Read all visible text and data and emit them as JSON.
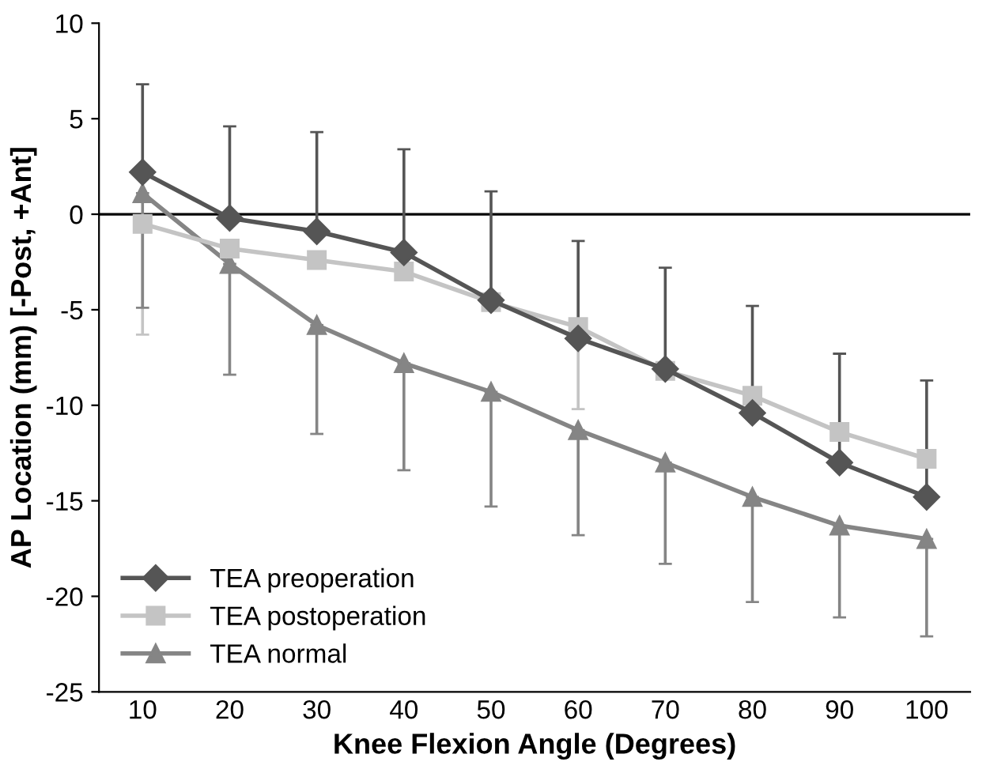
{
  "chart_data": {
    "type": "line",
    "xlabel": "Knee Flexion Angle (Degrees)",
    "ylabel": "AP Location (mm) [-Post, +Ant]",
    "categories": [
      "10",
      "20",
      "30",
      "40",
      "50",
      "60",
      "70",
      "80",
      "90",
      "100"
    ],
    "ylim": [
      -25,
      10
    ],
    "yticks": [
      -25,
      -20,
      -15,
      -10,
      -5,
      0,
      5,
      10
    ],
    "grid": false,
    "legend": "bottom left",
    "ref_lines": [
      {
        "axis": "y",
        "value": 0,
        "color": "#000000"
      }
    ],
    "series": [
      {
        "name": "TEA preoperation",
        "color": "#555555",
        "marker": "diamond",
        "values": [
          2.2,
          -0.2,
          -0.9,
          -2,
          -4.5,
          -6.5,
          -8.1,
          -10.4,
          -13,
          -14.8
        ],
        "errors": [
          [
            2.2,
            6.8
          ],
          [
            -0.2,
            4.6
          ],
          [
            -0.9,
            4.3
          ],
          [
            -2,
            3.4
          ],
          [
            -4.5,
            1.2
          ],
          [
            -6.5,
            -1.4
          ],
          [
            -8.1,
            -2.8
          ],
          [
            -10.4,
            -4.8
          ],
          [
            -13,
            -7.3
          ],
          [
            -14.8,
            -8.7
          ]
        ]
      },
      {
        "name": "TEA postoperation",
        "color": "#c4c4c4",
        "marker": "square",
        "values": [
          -0.5,
          -1.8,
          -2.4,
          -3.0,
          -4.6,
          -5.9,
          -8.2,
          -9.5,
          -11.4,
          -12.8
        ],
        "errors": [
          [
            -6.3,
            -0.5
          ],
          null,
          null,
          null,
          null,
          [
            -10.2,
            -5.9
          ],
          null,
          null,
          null,
          null
        ]
      },
      {
        "name": "TEA normal",
        "color": "#858585",
        "marker": "triangle",
        "values": [
          1.1,
          -2.6,
          -5.8,
          -7.8,
          -9.3,
          -11.3,
          -13,
          -14.8,
          -16.3,
          -17
        ],
        "errors": [
          [
            -4.9,
            1.1
          ],
          [
            -8.4,
            -2.6
          ],
          [
            -11.5,
            -5.8
          ],
          [
            -13.4,
            -7.8
          ],
          [
            -15.3,
            -9.3
          ],
          [
            -16.8,
            -11.3
          ],
          [
            -18.3,
            -13
          ],
          [
            -20.3,
            -14.8
          ],
          [
            -21.1,
            -16.3
          ],
          [
            -22.1,
            -17
          ]
        ]
      }
    ]
  }
}
